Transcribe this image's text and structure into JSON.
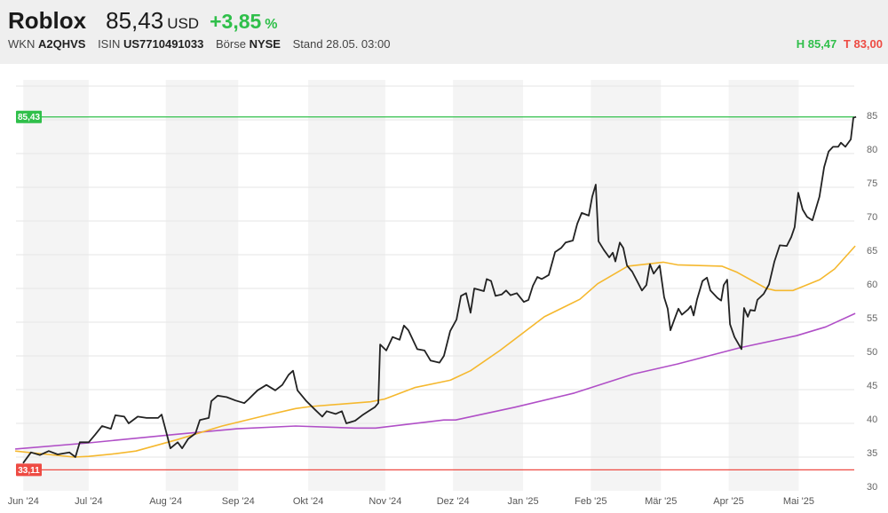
{
  "header": {
    "name": "Roblox",
    "price": "85,43",
    "currency": "USD",
    "change": "+3,85",
    "change_unit": "%",
    "wkn_label": "WKN",
    "wkn": "A2QHVS",
    "isin_label": "ISIN",
    "isin": "US7710491033",
    "exchange_label": "Börse",
    "exchange": "NYSE",
    "stand": "Stand 28.05. 03:00",
    "high": "H 85,47",
    "low": "T 83,00"
  },
  "colors": {
    "up": "#2fbf4a",
    "down": "#ee4b43",
    "price": "#222222",
    "ma_short": "#f5b82e",
    "ma_long": "#b04fc7"
  },
  "chart_data": {
    "type": "line",
    "title": "",
    "xlabel": "",
    "ylabel": "",
    "x_unit": "days since 2024-06-01",
    "xlim": [
      -1,
      360
    ],
    "ylim": [
      30,
      90
    ],
    "grid": true,
    "y_ticks": [
      30,
      35,
      40,
      45,
      50,
      55,
      60,
      65,
      70,
      75,
      80,
      85
    ],
    "y_tick_labels": [
      "30",
      "35",
      "40",
      "45",
      "50",
      "55",
      "60",
      "65",
      "70",
      "75",
      "80",
      "85"
    ],
    "x_ticks": [
      {
        "label": "Jun '24",
        "day": 2
      },
      {
        "label": "Jul '24",
        "day": 30
      },
      {
        "label": "Aug '24",
        "day": 63
      },
      {
        "label": "Sep '24",
        "day": 94
      },
      {
        "label": "Okt '24",
        "day": 124
      },
      {
        "label": "Nov '24",
        "day": 157
      },
      {
        "label": "Dez '24",
        "day": 186
      },
      {
        "label": "Jan '25",
        "day": 216
      },
      {
        "label": "Feb '25",
        "day": 245
      },
      {
        "label": "Mär '25",
        "day": 275
      },
      {
        "label": "Apr '25",
        "day": 304
      },
      {
        "label": "Mai '25",
        "day": 334
      }
    ],
    "reference_lines": [
      {
        "name": "high",
        "value": 85.43,
        "label": "85,43",
        "color": "#2fbf4a"
      },
      {
        "name": "low",
        "value": 33.11,
        "label": "33,11",
        "color": "#ee4b43"
      }
    ],
    "series": [
      {
        "name": "price",
        "color": "#222222",
        "x": [
          1.9,
          5.3,
          9.1,
          12.9,
          16.7,
          21.7,
          24.3,
          26.2,
          30,
          32.7,
          35.7,
          39.5,
          41.4,
          45.2,
          47.1,
          51,
          54.8,
          59.7,
          61.2,
          63.5,
          65,
          68.1,
          70,
          72.6,
          75.7,
          77.6,
          81.4,
          82.5,
          85.2,
          89,
          92.8,
          96.6,
          98.5,
          102.3,
          106.1,
          109.9,
          112.9,
          115.6,
          117.5,
          119.4,
          123.2,
          127,
          130,
          131.9,
          135.7,
          138.4,
          140.3,
          144.1,
          147.1,
          149.8,
          152.5,
          154,
          154.8,
          157.4,
          160.1,
          163.1,
          165,
          166.9,
          170.7,
          173.8,
          176.4,
          180.2,
          182.1,
          184.8,
          187.5,
          189.4,
          191.6,
          193.5,
          195.1,
          199.2,
          200.4,
          202.3,
          204.2,
          206.8,
          208.7,
          210.6,
          213.3,
          216.3,
          218.3,
          220.2,
          222.1,
          224,
          227,
          229.7,
          232.3,
          234.2,
          237.3,
          239.2,
          241.1,
          244.1,
          245.6,
          247.1,
          248.3,
          250.6,
          252.9,
          254.4,
          255.5,
          257.4,
          258.9,
          260.5,
          262.7,
          265.4,
          266.9,
          268.8,
          270.3,
          271.9,
          274.5,
          276.4,
          277.9,
          279.1,
          281,
          282.5,
          284,
          286.7,
          287.8,
          289,
          290.5,
          292.8,
          294.7,
          296.2,
          299.2,
          300.8,
          301.9,
          303.4,
          304.6,
          306.5,
          309.5,
          310.6,
          312.2,
          313.3,
          315.2,
          316.3,
          319,
          321.3,
          323.6,
          325.9,
          328.9,
          330.8,
          332.3,
          333.8,
          335.7,
          337.6,
          339.9,
          342.9,
          344.9,
          346.8,
          348.7,
          350.9,
          352.1,
          354,
          356.3,
          357.4,
          358.6
        ],
        "y": [
          34.1,
          35.7,
          35.3,
          35.9,
          35.4,
          35.7,
          35.0,
          37.2,
          37.2,
          38.3,
          39.6,
          39.2,
          41.2,
          41.0,
          40.0,
          41.0,
          40.8,
          40.8,
          41.3,
          38.3,
          36.3,
          37.2,
          36.3,
          37.7,
          38.5,
          40.5,
          40.8,
          43.3,
          44.1,
          43.9,
          43.4,
          43.0,
          43.6,
          44.9,
          45.7,
          44.9,
          45.7,
          47.2,
          47.8,
          44.9,
          43.3,
          42.0,
          41.0,
          41.8,
          41.4,
          41.8,
          40.0,
          40.4,
          41.2,
          41.8,
          42.4,
          43.0,
          51.7,
          50.8,
          52.8,
          52.4,
          54.5,
          53.8,
          51.0,
          50.8,
          49.3,
          49.0,
          50.0,
          53.7,
          55.4,
          58.9,
          59.3,
          56.4,
          60.0,
          59.6,
          61.4,
          61.1,
          58.9,
          59.1,
          59.7,
          59.0,
          59.3,
          58.0,
          58.3,
          60.4,
          61.7,
          61.4,
          62.0,
          65.4,
          66.0,
          66.8,
          67.1,
          69.6,
          71.2,
          70.8,
          73.6,
          75.4,
          67.0,
          65.7,
          64.6,
          65.3,
          64.0,
          66.8,
          66.0,
          63.4,
          62.5,
          60.7,
          59.7,
          60.5,
          63.6,
          62.2,
          63.4,
          58.7,
          57.0,
          53.8,
          55.6,
          57.0,
          56.1,
          56.9,
          57.4,
          56.0,
          58.4,
          61.1,
          61.6,
          59.7,
          58.6,
          58.2,
          60.5,
          61.3,
          54.7,
          52.8,
          51.0,
          57.1,
          55.8,
          56.8,
          56.7,
          58.3,
          59.2,
          60.6,
          64.0,
          66.4,
          66.3,
          67.6,
          69.1,
          74.2,
          71.7,
          70.6,
          70.1,
          73.6,
          78.0,
          80.3,
          81.0,
          81.0,
          81.6,
          81.0,
          82.1,
          85.3,
          85.43
        ]
      },
      {
        "name": "moving-average-short",
        "color": "#f5b82e",
        "x": [
          -1.5,
          23.6,
          30,
          41.4,
          50.2,
          68.1,
          87.1,
          106.1,
          118.6,
          125.1,
          150.6,
          156.7,
          169.6,
          182.1,
          184.8,
          193.5,
          206.1,
          225.1,
          240.3,
          247.9,
          260.8,
          276,
          282.1,
          301.1,
          307.6,
          320.2,
          324,
          331.6,
          343,
          349.4,
          358.2
        ],
        "y": [
          35.9,
          35.0,
          35.1,
          35.5,
          35.9,
          37.6,
          39.6,
          41.2,
          42.2,
          42.5,
          43.2,
          43.6,
          45.3,
          46.2,
          46.4,
          47.8,
          50.8,
          55.8,
          58.4,
          60.7,
          63.3,
          63.9,
          63.5,
          63.3,
          62.4,
          60.0,
          59.7,
          59.7,
          61.3,
          62.9,
          66.3
        ]
      },
      {
        "name": "moving-average-long",
        "color": "#b04fc7",
        "x": [
          -1.5,
          30,
          68.1,
          93.5,
          118.6,
          144.1,
          152.9,
          182.1,
          187.1,
          212.5,
          238,
          263.1,
          282.1,
          308.7,
          333.1,
          345.6,
          358.2
        ],
        "y": [
          36.2,
          37.1,
          38.4,
          39.2,
          39.6,
          39.3,
          39.3,
          40.5,
          40.5,
          42.4,
          44.5,
          47.3,
          48.8,
          51.2,
          53.0,
          54.3,
          56.3
        ]
      }
    ]
  }
}
